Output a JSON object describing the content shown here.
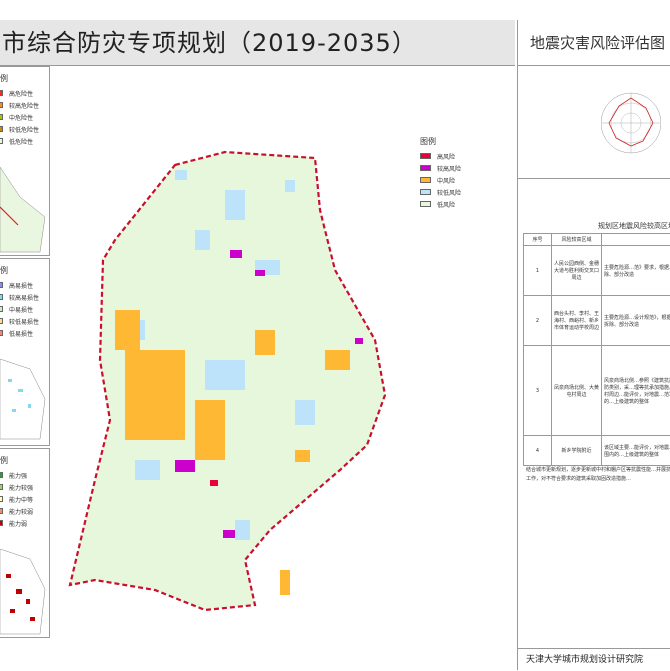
{
  "header": {
    "title": "市综合防灾专项规划（2019-2035）",
    "right_title": "地震灾害风险评估图"
  },
  "legend_hazard": {
    "title": "图例",
    "items": [
      {
        "label": "高危险性",
        "color": "#ff2a1a"
      },
      {
        "label": "较高危险性",
        "color": "#ff8c1a"
      },
      {
        "label": "中危险性",
        "color": "#99cc00"
      },
      {
        "label": "较低危险性",
        "color": "#cc8800"
      },
      {
        "label": "低危险性",
        "color": "#eaf7e0"
      }
    ]
  },
  "legend_vuln": {
    "title": "图例",
    "items": [
      {
        "label": "高易损性",
        "color": "#8a8aff"
      },
      {
        "label": "较高易损性",
        "color": "#7fd9f0"
      },
      {
        "label": "中易损性",
        "color": "#c8f0c0"
      },
      {
        "label": "较低易损性",
        "color": "#ffe08a"
      },
      {
        "label": "低易损性",
        "color": "#ff8080"
      }
    ]
  },
  "legend_capacity": {
    "title": "图例",
    "items": [
      {
        "label": "能力强",
        "color": "#2e9e2e"
      },
      {
        "label": "能力较强",
        "color": "#99d66b"
      },
      {
        "label": "能力中等",
        "color": "#ffffb0"
      },
      {
        "label": "能力较弱",
        "color": "#f0906a"
      },
      {
        "label": "能力弱",
        "color": "#c00000"
      }
    ]
  },
  "legend_main": {
    "title": "图例",
    "items": [
      {
        "label": "高风险",
        "color": "#e8003a"
      },
      {
        "label": "较高风险",
        "color": "#cc00cc"
      },
      {
        "label": "中风险",
        "color": "#ffb833"
      },
      {
        "label": "较低风险",
        "color": "#bde3fb"
      },
      {
        "label": "低风险",
        "color": "#e6f7dc"
      }
    ]
  },
  "table": {
    "title": "规划区地震风险较高区域",
    "headers": [
      "序号",
      "风险较高区域",
      ""
    ],
    "rows": [
      {
        "no": "1",
        "area": "人民公园西侧、金穗大道与胜利街交叉口周边",
        "desc": "主要危险源…范》要求，根据…部拆除、部分改造"
      },
      {
        "no": "2",
        "area": "西台头村、李村、王海村、西峪村、新乡市体育运动学校周边",
        "desc": "主要危险源…设计规范》，根据…全部拆除、部分改造"
      },
      {
        "no": "3",
        "area": "凤泉商场北侧、大黄屯村周边",
        "desc": "风泉商场北侧…参照《建筑抗震…构设防类别，采…理等抗承加措施。大黄屯村周边…能评价，对地震…范》范围内的…上级建筑的整体"
      },
      {
        "no": "4",
        "area": "新乡学院附近",
        "desc": "该区域主要…能评价，对地震…范》范围内的…上级建筑的整体"
      }
    ]
  },
  "note": "结合城市更新规划，逐步更新城中村和棚户区等抗震性能…并展抗震鉴定工作，对不符合要求的建筑采取加固改造措施…",
  "footer": "天津大学城市规划设计研究院"
}
